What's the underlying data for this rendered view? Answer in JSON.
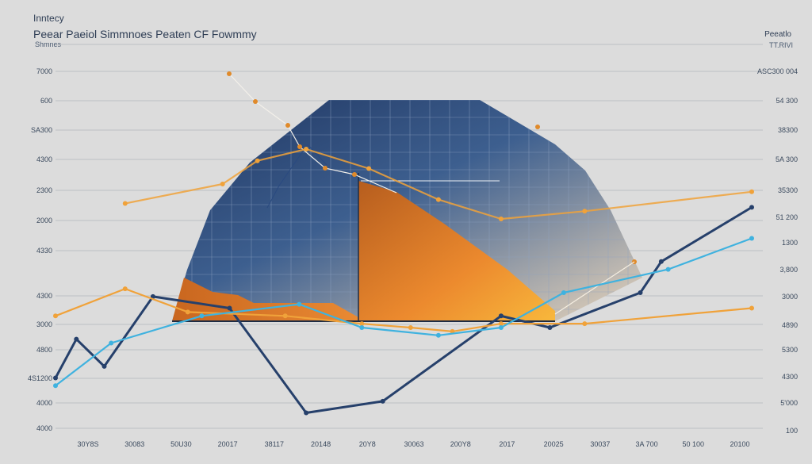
{
  "header": {
    "supertitle": "Inntecy",
    "title": "Peear Paeiol Simmnoes Peaten CF Fowmmy",
    "subtitle": "Shmnes",
    "right_title": "Peeatlo",
    "right_subtitle": "TT.RIVI"
  },
  "colors": {
    "navy": "#26406b",
    "orange": "#f0a23a",
    "cyan": "#3fb2df",
    "grid": "#b3b6bb",
    "panel_dark": "#1f3560",
    "panel_light": "#e9d6bc"
  },
  "chart_data": {
    "type": "line",
    "title": "Peear Paeiol Simmnoes Peaten CF Fowmmy",
    "xlabel": "",
    "ylabel": "",
    "grid": true,
    "legend": "none",
    "x_tick_labels": [
      "30Y8S",
      "30083",
      "50U30",
      "20017",
      "38117",
      "20148",
      "20Y8",
      "30063",
      "200Y8",
      "2017",
      "20025",
      "30037",
      "3A 700",
      "50 100",
      "20100"
    ],
    "y_tick_labels_left": [
      "7000",
      "600",
      "SA300",
      "4300",
      "2300",
      "2000",
      "4330",
      "4300",
      "3000",
      "4800",
      "4S1200",
      "4000",
      "4000"
    ],
    "y_tick_labels_right": [
      "ASC300 004",
      "54 300",
      "38300",
      "5A 300",
      "35300",
      "51 200",
      "1300",
      "3,800",
      "3000",
      "4890",
      "5300",
      "4300",
      "5'000",
      "100"
    ],
    "ylim": [
      0,
      100
    ],
    "series": [
      {
        "color": "navy",
        "values": [
          [
            0,
            14
          ],
          [
            3,
            24
          ],
          [
            7,
            17
          ],
          [
            14,
            35
          ],
          [
            25,
            32
          ],
          [
            36,
            5
          ],
          [
            47,
            8
          ],
          [
            64,
            30
          ],
          [
            71,
            27
          ],
          [
            84,
            36
          ],
          [
            87,
            44
          ],
          [
            100,
            58
          ]
        ]
      },
      {
        "color": "orange",
        "values": [
          [
            0,
            30
          ],
          [
            10,
            37
          ],
          [
            19,
            31
          ],
          [
            33,
            30
          ],
          [
            44,
            28
          ],
          [
            51,
            27
          ],
          [
            57,
            26
          ],
          [
            64,
            28
          ],
          [
            76,
            28
          ],
          [
            100,
            32
          ]
        ]
      },
      {
        "color": "cyan",
        "values": [
          [
            0,
            12
          ],
          [
            8,
            23
          ],
          [
            21,
            30
          ],
          [
            35,
            33
          ],
          [
            44,
            27
          ],
          [
            55,
            25
          ],
          [
            64,
            27
          ],
          [
            73,
            36
          ],
          [
            88,
            42
          ],
          [
            100,
            50
          ]
        ]
      },
      {
        "color": "orange",
        "values": [
          [
            10,
            59
          ],
          [
            24,
            64
          ],
          [
            29,
            70
          ],
          [
            36,
            73
          ],
          [
            45,
            68
          ],
          [
            55,
            60
          ],
          [
            64,
            55
          ],
          [
            76,
            57
          ],
          [
            100,
            62
          ]
        ]
      }
    ]
  }
}
